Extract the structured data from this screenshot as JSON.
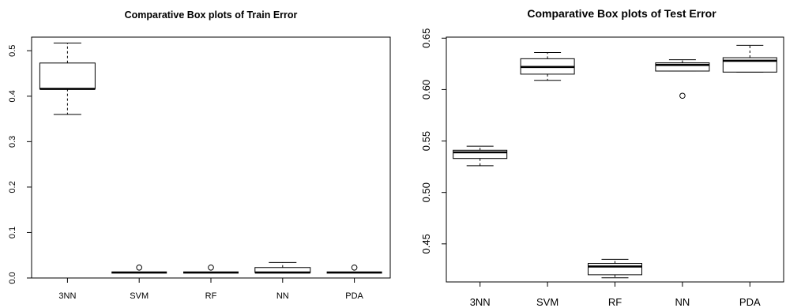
{
  "chart_data": [
    {
      "type": "boxplot",
      "title": "Comparative Box plots of Train Error",
      "xlabel": "",
      "ylabel": "",
      "categories": [
        "3NN",
        "SVM",
        "RF",
        "NN",
        "PDA"
      ],
      "ylim": [
        0.0,
        0.53
      ],
      "yticks": [
        0.0,
        0.1,
        0.2,
        0.3,
        0.4,
        0.5
      ],
      "ytick_labels": [
        "0.0",
        "0.1",
        "0.2",
        "0.3",
        "0.4",
        "0.5"
      ],
      "boxes": [
        {
          "name": "3NN",
          "whisker_low": 0.36,
          "q1": 0.416,
          "median": 0.416,
          "q3": 0.473,
          "whisker_high": 0.517,
          "outliers": []
        },
        {
          "name": "SVM",
          "whisker_low": 0.012,
          "q1": 0.012,
          "median": 0.012,
          "q3": 0.012,
          "whisker_high": 0.012,
          "outliers": [
            0.023
          ]
        },
        {
          "name": "RF",
          "whisker_low": 0.012,
          "q1": 0.012,
          "median": 0.012,
          "q3": 0.012,
          "whisker_high": 0.012,
          "outliers": [
            0.023
          ]
        },
        {
          "name": "NN",
          "whisker_low": 0.012,
          "q1": 0.012,
          "median": 0.012,
          "q3": 0.023,
          "whisker_high": 0.034,
          "outliers": []
        },
        {
          "name": "PDA",
          "whisker_low": 0.012,
          "q1": 0.012,
          "median": 0.012,
          "q3": 0.012,
          "whisker_high": 0.012,
          "outliers": [
            0.023
          ]
        }
      ]
    },
    {
      "type": "boxplot",
      "title": "Comparative Box plots of Test Error",
      "xlabel": "",
      "ylabel": "",
      "categories": [
        "3NN",
        "SVM",
        "RF",
        "NN",
        "PDA"
      ],
      "ylim": [
        0.413,
        0.651
      ],
      "yticks": [
        0.45,
        0.5,
        0.55,
        0.6,
        0.65
      ],
      "ytick_labels": [
        "0.45",
        "0.50",
        "0.55",
        "0.60",
        "0.65"
      ],
      "boxes": [
        {
          "name": "3NN",
          "whisker_low": 0.526,
          "q1": 0.533,
          "median": 0.539,
          "q3": 0.541,
          "whisker_high": 0.545,
          "outliers": []
        },
        {
          "name": "SVM",
          "whisker_low": 0.609,
          "q1": 0.615,
          "median": 0.622,
          "q3": 0.63,
          "whisker_high": 0.636,
          "outliers": []
        },
        {
          "name": "RF",
          "whisker_low": 0.417,
          "q1": 0.42,
          "median": 0.428,
          "q3": 0.431,
          "whisker_high": 0.435,
          "outliers": []
        },
        {
          "name": "NN",
          "whisker_low": 0.618,
          "q1": 0.618,
          "median": 0.624,
          "q3": 0.626,
          "whisker_high": 0.629,
          "outliers": [
            0.594
          ]
        },
        {
          "name": "PDA",
          "whisker_low": 0.617,
          "q1": 0.617,
          "median": 0.628,
          "q3": 0.631,
          "whisker_high": 0.643,
          "outliers": []
        }
      ]
    }
  ]
}
